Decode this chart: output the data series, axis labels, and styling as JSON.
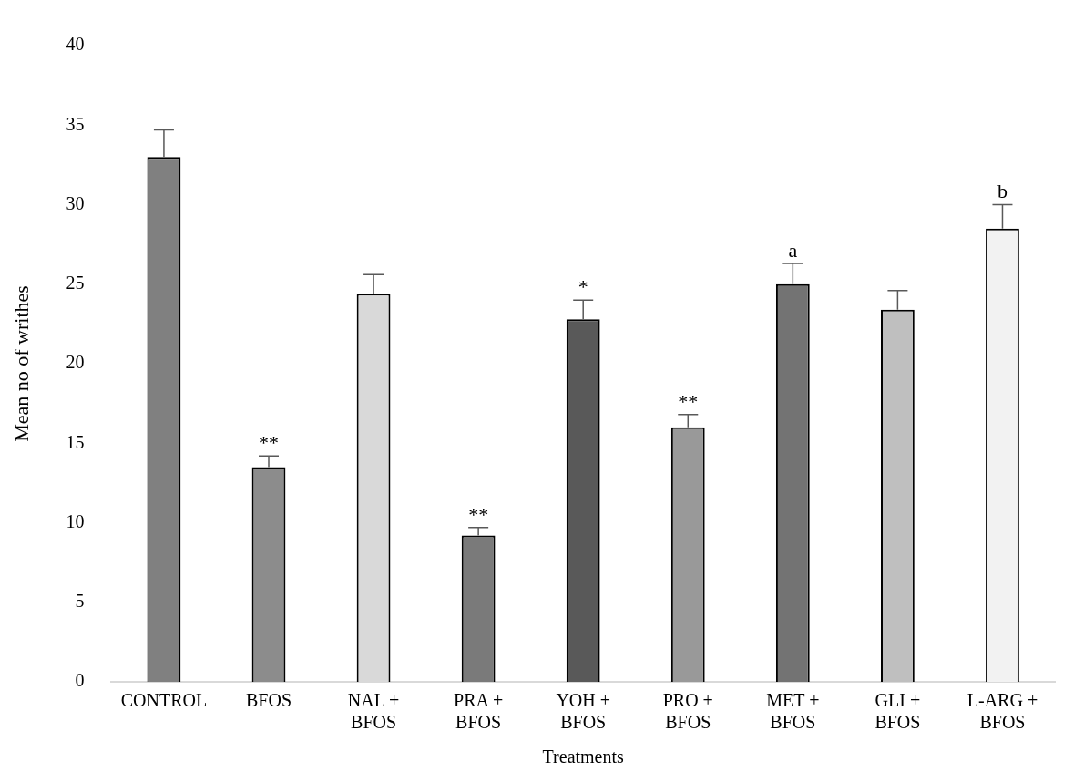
{
  "chart_data": {
    "type": "bar",
    "xlabel": "Treatments",
    "ylabel": "Mean no of writhes",
    "categories": [
      "CONTROL",
      "BFOS",
      "NAL + BFOS",
      "PRA + BFOS",
      "YOH + BFOS",
      "PRO + BFOS",
      "MET + BFOS",
      "GLI + BFOS",
      "L-ARG + BFOS"
    ],
    "values": [
      33,
      13.5,
      24.4,
      9.2,
      22.8,
      16,
      25,
      23.4,
      28.5
    ],
    "errors": [
      1.7,
      0.7,
      1.2,
      0.5,
      1.2,
      0.8,
      1.3,
      1.2,
      1.5
    ],
    "colors": [
      "#808080",
      "#8c8c8c",
      "#d9d9d9",
      "#7a7a7a",
      "#595959",
      "#999999",
      "#737373",
      "#bfbfbf",
      "#f2f2f2"
    ],
    "ylim": [
      0,
      40
    ],
    "yticks": [
      0,
      5,
      10,
      15,
      20,
      25,
      30,
      35,
      40
    ],
    "grid": false,
    "legend": false,
    "annotations": [
      {
        "text": "**",
        "x": "BFOS",
        "y": 14.2
      },
      {
        "text": "**",
        "x": "PRA + BFOS",
        "y": 9.7
      },
      {
        "text": "*",
        "x": "YOH + BFOS",
        "y": 24
      },
      {
        "text": "**",
        "x": "PRO + BFOS",
        "y": 16.8
      },
      {
        "text": "a",
        "x": "MET + BFOS",
        "y": 26.3
      },
      {
        "text": "b",
        "x": "L-ARG + BFOS",
        "y": 30
      }
    ]
  }
}
